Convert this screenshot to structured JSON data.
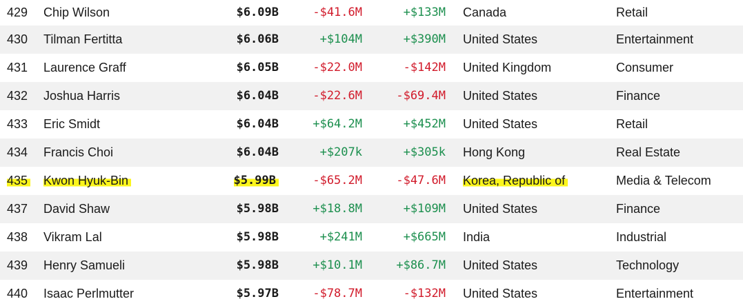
{
  "rows": [
    {
      "rank": "429",
      "name": "Chip Wilson",
      "net_worth": "$6.09B",
      "change_day": "-$41.6M",
      "change_ytd": "+$133M",
      "country": "Canada",
      "industry": "Retail"
    },
    {
      "rank": "430",
      "name": "Tilman Fertitta",
      "net_worth": "$6.06B",
      "change_day": "+$104M",
      "change_ytd": "+$390M",
      "country": "United States",
      "industry": "Entertainment"
    },
    {
      "rank": "431",
      "name": "Laurence Graff",
      "net_worth": "$6.05B",
      "change_day": "-$22.0M",
      "change_ytd": "-$142M",
      "country": "United Kingdom",
      "industry": "Consumer"
    },
    {
      "rank": "432",
      "name": "Joshua Harris",
      "net_worth": "$6.04B",
      "change_day": "-$22.6M",
      "change_ytd": "-$69.4M",
      "country": "United States",
      "industry": "Finance"
    },
    {
      "rank": "433",
      "name": "Eric Smidt",
      "net_worth": "$6.04B",
      "change_day": "+$64.2M",
      "change_ytd": "+$452M",
      "country": "United States",
      "industry": "Retail"
    },
    {
      "rank": "434",
      "name": "Francis Choi",
      "net_worth": "$6.04B",
      "change_day": "+$207k",
      "change_ytd": "+$305k",
      "country": "Hong Kong",
      "industry": "Real Estate"
    },
    {
      "rank": "435",
      "name": "Kwon Hyuk-Bin",
      "net_worth": "$5.99B",
      "change_day": "-$65.2M",
      "change_ytd": "-$47.6M",
      "country": "Korea, Republic of",
      "industry": "Media & Telecom"
    },
    {
      "rank": "437",
      "name": "David Shaw",
      "net_worth": "$5.98B",
      "change_day": "+$18.8M",
      "change_ytd": "+$109M",
      "country": "United States",
      "industry": "Finance"
    },
    {
      "rank": "438",
      "name": "Vikram Lal",
      "net_worth": "$5.98B",
      "change_day": "+$241M",
      "change_ytd": "+$665M",
      "country": "India",
      "industry": "Industrial"
    },
    {
      "rank": "439",
      "name": "Henry Samueli",
      "net_worth": "$5.98B",
      "change_day": "+$10.1M",
      "change_ytd": "+$86.7M",
      "country": "United States",
      "industry": "Technology"
    },
    {
      "rank": "440",
      "name": "Isaac Perlmutter",
      "net_worth": "$5.97B",
      "change_day": "-$78.7M",
      "change_ytd": "-$132M",
      "country": "United States",
      "industry": "Entertainment"
    }
  ],
  "highlighted_rank": "435",
  "colors": {
    "negative": "#d11a2a",
    "positive": "#1c8f4e",
    "highlight": "#fbf51c",
    "row_alt": "#f1f1f1"
  }
}
